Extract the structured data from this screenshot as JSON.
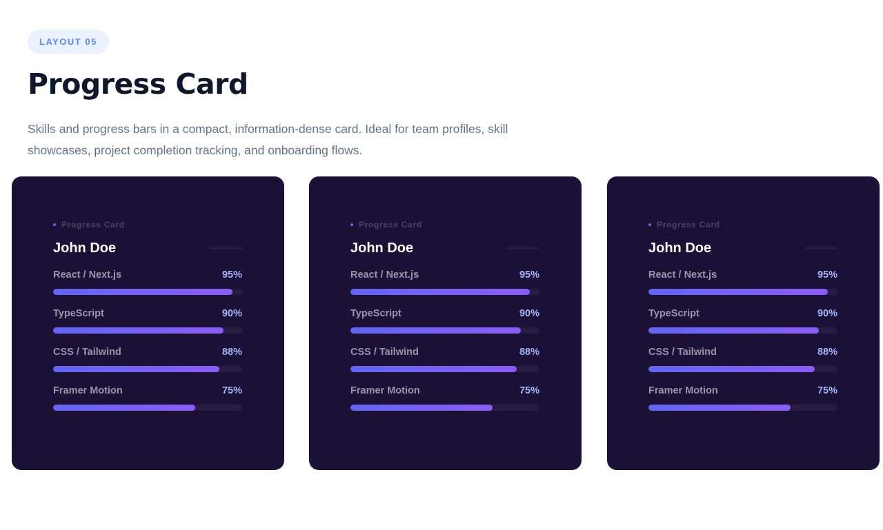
{
  "header": {
    "badge": "LAYOUT 05",
    "title": "Progress Card",
    "description": "Skills and progress bars in a compact, information-dense card. Ideal for team profiles, skill showcases, project completion tracking, and onboarding flows."
  },
  "cards": [
    {
      "eyebrow": "Progress Card",
      "name": "John Doe",
      "skills": [
        {
          "label": "React / Next.js",
          "pct": "95%",
          "value": 95
        },
        {
          "label": "TypeScript",
          "pct": "90%",
          "value": 90
        },
        {
          "label": "CSS / Tailwind",
          "pct": "88%",
          "value": 88
        },
        {
          "label": "Framer Motion",
          "pct": "75%",
          "value": 75
        }
      ]
    },
    {
      "eyebrow": "Progress Card",
      "name": "John Doe",
      "skills": [
        {
          "label": "React / Next.js",
          "pct": "95%",
          "value": 95
        },
        {
          "label": "TypeScript",
          "pct": "90%",
          "value": 90
        },
        {
          "label": "CSS / Tailwind",
          "pct": "88%",
          "value": 88
        },
        {
          "label": "Framer Motion",
          "pct": "75%",
          "value": 75
        }
      ]
    },
    {
      "eyebrow": "Progress Card",
      "name": "John Doe",
      "skills": [
        {
          "label": "React / Next.js",
          "pct": "95%",
          "value": 95
        },
        {
          "label": "TypeScript",
          "pct": "90%",
          "value": 90
        },
        {
          "label": "CSS / Tailwind",
          "pct": "88%",
          "value": 88
        },
        {
          "label": "Framer Motion",
          "pct": "75%",
          "value": 75
        }
      ]
    }
  ]
}
